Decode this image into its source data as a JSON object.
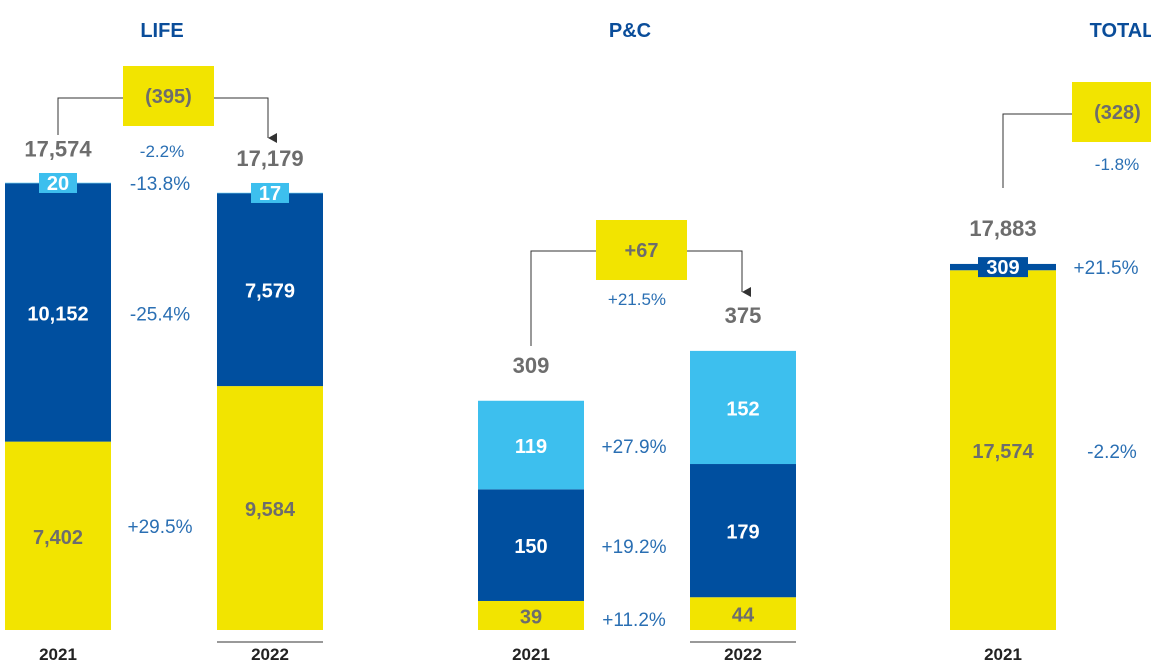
{
  "colors": {
    "yellow": "#f2e400",
    "dark_blue": "#004f9f",
    "light_blue": "#3dbfee",
    "title_blue": "#0a4d9a",
    "pct_blue": "#2a6fb3",
    "total_gray": "#6d6d6d",
    "yellow_text": "#6d6d6d",
    "white_text": "#ffffff"
  },
  "chart_data": [
    {
      "type": "bar",
      "stacked": true,
      "title": "LIFE",
      "categories": [
        "2021",
        "2022"
      ],
      "series": [
        {
          "values": [
            7402,
            9584
          ],
          "labels": [
            "7,402",
            "9,584"
          ],
          "color": "yellow",
          "change_label": "+29.5%"
        },
        {
          "values": [
            10152,
            7579
          ],
          "labels": [
            "10,152",
            "7,579"
          ],
          "color": "dark_blue",
          "change_label": "-25.4%"
        },
        {
          "values": [
            20,
            17
          ],
          "labels": [
            "20",
            "17"
          ],
          "color": "light_blue",
          "change_label": "-13.8%"
        }
      ],
      "totals": [
        17574,
        17179
      ],
      "total_labels": [
        "17,574",
        "17,179"
      ],
      "change": {
        "value": -395,
        "label": "(395)",
        "pct_label": "-2.2%"
      }
    },
    {
      "type": "bar",
      "stacked": true,
      "title": "P&C",
      "categories": [
        "2021",
        "2022"
      ],
      "series": [
        {
          "values": [
            39,
            44
          ],
          "labels": [
            "39",
            "44"
          ],
          "color": "yellow",
          "change_label": "+11.2%"
        },
        {
          "values": [
            150,
            179
          ],
          "labels": [
            "150",
            "179"
          ],
          "color": "dark_blue",
          "change_label": "+19.2%"
        },
        {
          "values": [
            119,
            152
          ],
          "labels": [
            "119",
            "152"
          ],
          "color": "light_blue",
          "change_label": "+27.9%"
        }
      ],
      "totals": [
        309,
        375
      ],
      "total_labels": [
        "309",
        "375"
      ],
      "change": {
        "value": 67,
        "label": "+67",
        "pct_label": "+21.5%"
      }
    },
    {
      "type": "bar",
      "stacked": true,
      "title": "TOTAL",
      "categories": [
        "2021"
      ],
      "series": [
        {
          "values": [
            17574
          ],
          "labels": [
            "17,574"
          ],
          "color": "yellow",
          "change_label": "-2.2%"
        },
        {
          "values": [
            309
          ],
          "labels": [
            "309"
          ],
          "color": "dark_blue",
          "change_label": "+21.5%"
        }
      ],
      "totals": [
        17883
      ],
      "total_labels": [
        "17,883"
      ],
      "change": {
        "value": -328,
        "label": "(328)",
        "pct_label": "-1.8%"
      }
    }
  ]
}
